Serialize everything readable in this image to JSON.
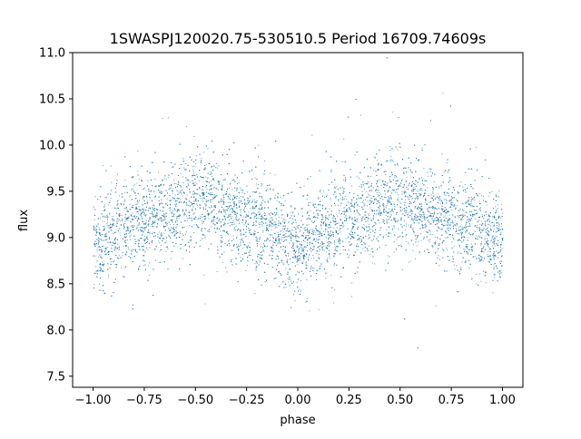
{
  "chart_data": {
    "type": "scatter",
    "title": "1SWASPJ120020.75-530510.5 Period 16709.74609s",
    "xlabel": "phase",
    "ylabel": "flux",
    "xlim": [
      -1.1,
      1.1
    ],
    "ylim": [
      7.38,
      11.0
    ],
    "x_ticks": [
      -1.0,
      -0.75,
      -0.5,
      -0.25,
      0.0,
      0.25,
      0.5,
      0.75,
      1.0
    ],
    "x_tick_labels": [
      "−1.00",
      "−0.75",
      "−0.50",
      "−0.25",
      "0.00",
      "0.25",
      "0.50",
      "0.75",
      "1.00"
    ],
    "y_ticks": [
      7.5,
      8.0,
      8.5,
      9.0,
      9.5,
      10.0,
      10.5,
      11.0
    ],
    "y_tick_labels": [
      "7.5",
      "8.0",
      "8.5",
      "9.0",
      "9.5",
      "10.0",
      "10.5",
      "11.0"
    ],
    "grid": false,
    "legend": "none",
    "marker_color": "#1f77b4",
    "series": [
      {
        "point_density": "dense, tens of thousands of points",
        "phase_range": [
          -1.0,
          1.0
        ],
        "trend": {
          "phase": [
            -1.0,
            -0.75,
            -0.5,
            -0.25,
            0.0,
            0.25,
            0.5,
            0.75,
            1.0
          ],
          "flux": [
            8.95,
            9.2,
            9.42,
            9.2,
            8.93,
            9.2,
            9.42,
            9.2,
            8.95
          ]
        },
        "scatter_sigma": 0.25
      }
    ]
  }
}
